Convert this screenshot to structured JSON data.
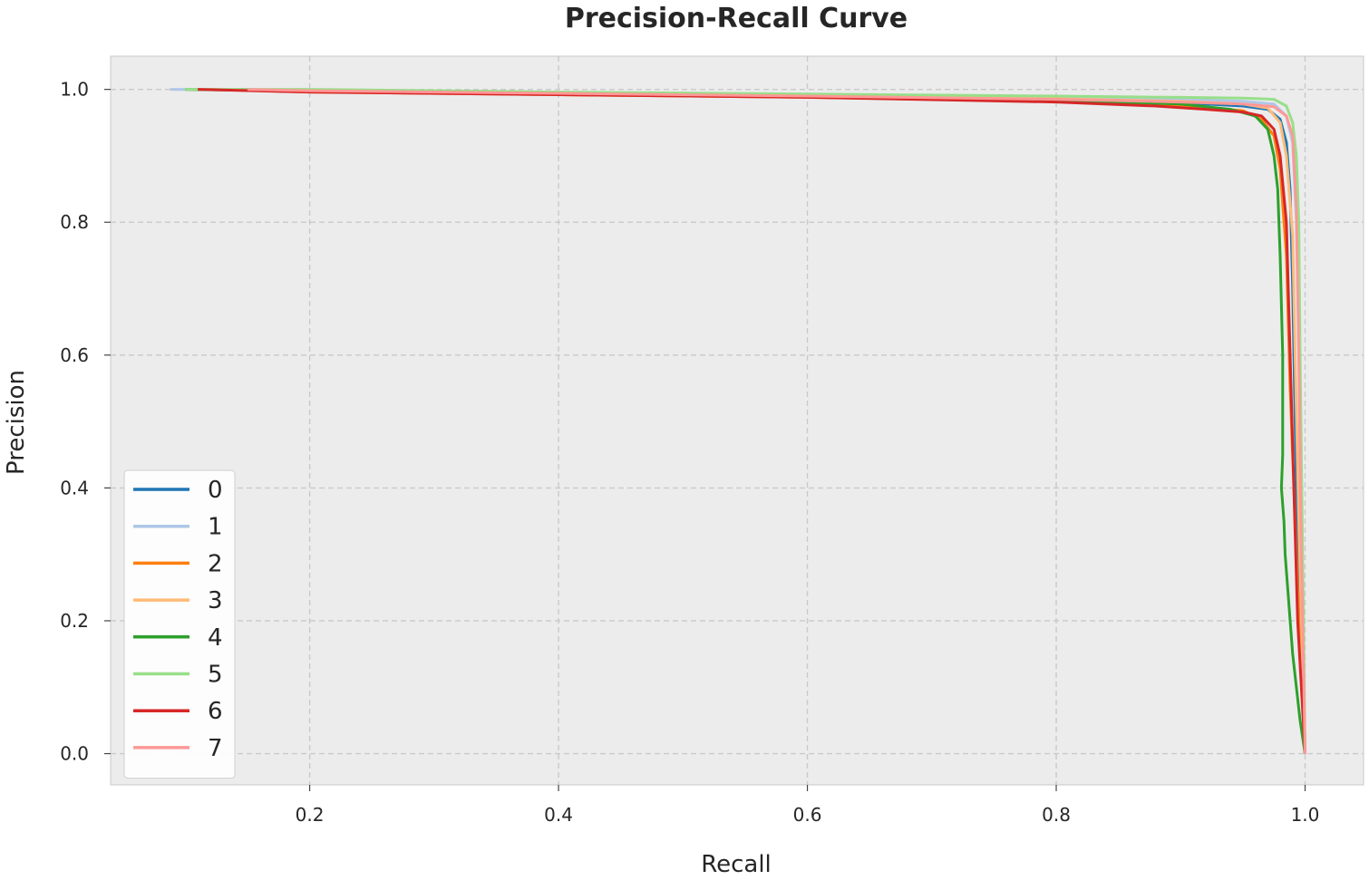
{
  "chart_data": {
    "type": "line",
    "title": "Precision-Recall Curve",
    "xlabel": "Recall",
    "ylabel": "Precision",
    "xlim": [
      0.04,
      1.047
    ],
    "ylim": [
      -0.047,
      1.05
    ],
    "xticks": [
      0.2,
      0.4,
      0.6,
      0.8,
      1.0
    ],
    "yticks": [
      0.0,
      0.2,
      0.4,
      0.6,
      0.8,
      1.0
    ],
    "xtick_labels": [
      "0.2",
      "0.4",
      "0.6",
      "0.8",
      "1.0"
    ],
    "ytick_labels": [
      "0.0",
      "0.2",
      "0.4",
      "0.6",
      "0.8",
      "1.0"
    ],
    "grid": true,
    "legend_position": "lower-left",
    "background": "#ececec",
    "series": [
      {
        "name": "0",
        "color": "#1f77b4",
        "points": [
          [
            0.145,
            1.0
          ],
          [
            0.2,
            0.998
          ],
          [
            0.4,
            0.994
          ],
          [
            0.6,
            0.99
          ],
          [
            0.8,
            0.985
          ],
          [
            0.9,
            0.98
          ],
          [
            0.95,
            0.975
          ],
          [
            0.97,
            0.97
          ],
          [
            0.98,
            0.955
          ],
          [
            0.985,
            0.92
          ],
          [
            0.988,
            0.85
          ],
          [
            0.99,
            0.7
          ],
          [
            0.992,
            0.5
          ],
          [
            0.994,
            0.3
          ],
          [
            0.997,
            0.15
          ],
          [
            1.0,
            0.0
          ]
        ]
      },
      {
        "name": "1",
        "color": "#aec7e8",
        "points": [
          [
            0.088,
            1.0
          ],
          [
            0.2,
            0.998
          ],
          [
            0.4,
            0.995
          ],
          [
            0.6,
            0.992
          ],
          [
            0.8,
            0.988
          ],
          [
            0.9,
            0.985
          ],
          [
            0.95,
            0.982
          ],
          [
            0.975,
            0.978
          ],
          [
            0.985,
            0.96
          ],
          [
            0.99,
            0.92
          ],
          [
            0.993,
            0.8
          ],
          [
            0.995,
            0.6
          ],
          [
            0.997,
            0.3
          ],
          [
            1.0,
            0.0
          ]
        ]
      },
      {
        "name": "2",
        "color": "#ff7f0e",
        "points": [
          [
            0.12,
            1.0
          ],
          [
            0.2,
            0.996
          ],
          [
            0.4,
            0.992
          ],
          [
            0.6,
            0.988
          ],
          [
            0.8,
            0.982
          ],
          [
            0.9,
            0.975
          ],
          [
            0.95,
            0.968
          ],
          [
            0.965,
            0.955
          ],
          [
            0.975,
            0.93
          ],
          [
            0.98,
            0.88
          ],
          [
            0.985,
            0.75
          ],
          [
            0.988,
            0.55
          ],
          [
            0.992,
            0.35
          ],
          [
            0.996,
            0.15
          ],
          [
            1.0,
            0.0
          ]
        ]
      },
      {
        "name": "3",
        "color": "#ffbb78",
        "points": [
          [
            0.14,
            1.0
          ],
          [
            0.2,
            0.997
          ],
          [
            0.4,
            0.994
          ],
          [
            0.6,
            0.991
          ],
          [
            0.8,
            0.986
          ],
          [
            0.9,
            0.982
          ],
          [
            0.95,
            0.978
          ],
          [
            0.97,
            0.972
          ],
          [
            0.98,
            0.95
          ],
          [
            0.985,
            0.9
          ],
          [
            0.99,
            0.78
          ],
          [
            0.992,
            0.6
          ],
          [
            0.995,
            0.35
          ],
          [
            1.0,
            0.0
          ]
        ]
      },
      {
        "name": "4",
        "color": "#2ca02c",
        "points": [
          [
            0.1,
            1.0
          ],
          [
            0.2,
            0.997
          ],
          [
            0.4,
            0.993
          ],
          [
            0.6,
            0.989
          ],
          [
            0.8,
            0.984
          ],
          [
            0.9,
            0.978
          ],
          [
            0.94,
            0.97
          ],
          [
            0.96,
            0.96
          ],
          [
            0.97,
            0.94
          ],
          [
            0.975,
            0.9
          ],
          [
            0.978,
            0.85
          ],
          [
            0.98,
            0.75
          ],
          [
            0.982,
            0.6
          ],
          [
            0.982,
            0.45
          ],
          [
            0.981,
            0.4
          ],
          [
            0.983,
            0.35
          ],
          [
            0.984,
            0.3
          ],
          [
            0.99,
            0.15
          ],
          [
            0.996,
            0.05
          ],
          [
            1.0,
            0.0
          ]
        ]
      },
      {
        "name": "5",
        "color": "#98df8a",
        "points": [
          [
            0.1,
            1.0
          ],
          [
            0.2,
            1.0
          ],
          [
            0.4,
            0.996
          ],
          [
            0.6,
            0.993
          ],
          [
            0.8,
            0.99
          ],
          [
            0.9,
            0.988
          ],
          [
            0.95,
            0.987
          ],
          [
            0.975,
            0.985
          ],
          [
            0.985,
            0.975
          ],
          [
            0.99,
            0.95
          ],
          [
            0.993,
            0.9
          ],
          [
            0.995,
            0.8
          ],
          [
            0.996,
            0.6
          ],
          [
            0.998,
            0.3
          ],
          [
            1.0,
            0.0
          ]
        ]
      },
      {
        "name": "6",
        "color": "#d62728",
        "points": [
          [
            0.11,
            1.0
          ],
          [
            0.2,
            0.996
          ],
          [
            0.4,
            0.992
          ],
          [
            0.6,
            0.988
          ],
          [
            0.8,
            0.981
          ],
          [
            0.88,
            0.975
          ],
          [
            0.92,
            0.97
          ],
          [
            0.95,
            0.966
          ],
          [
            0.965,
            0.96
          ],
          [
            0.975,
            0.94
          ],
          [
            0.98,
            0.9
          ],
          [
            0.985,
            0.8
          ],
          [
            0.988,
            0.6
          ],
          [
            0.991,
            0.4
          ],
          [
            0.994,
            0.2
          ],
          [
            1.0,
            0.0
          ]
        ]
      },
      {
        "name": "7",
        "color": "#ff9896",
        "points": [
          [
            0.15,
            1.0
          ],
          [
            0.2,
            0.998
          ],
          [
            0.4,
            0.994
          ],
          [
            0.6,
            0.99
          ],
          [
            0.8,
            0.985
          ],
          [
            0.9,
            0.981
          ],
          [
            0.95,
            0.978
          ],
          [
            0.975,
            0.974
          ],
          [
            0.985,
            0.96
          ],
          [
            0.99,
            0.93
          ],
          [
            0.993,
            0.82
          ],
          [
            0.995,
            0.6
          ],
          [
            0.997,
            0.3
          ],
          [
            1.0,
            0.0
          ]
        ]
      }
    ]
  }
}
